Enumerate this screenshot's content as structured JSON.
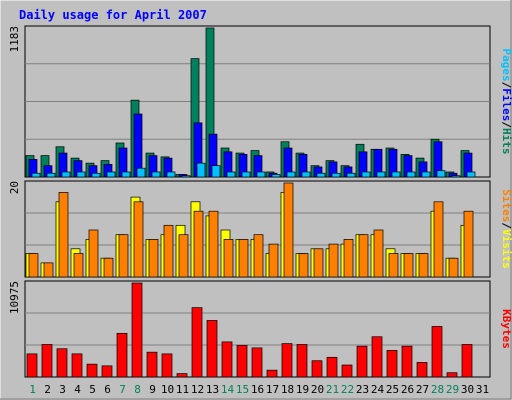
{
  "title": "Daily usage for April 2007",
  "colors": {
    "background": "#c0c0c0",
    "hits": "#00805c",
    "files": "#0000ff",
    "pages": "#00c0ff",
    "visits": "#ffff00",
    "sites": "#ff8000",
    "kbytes": "#ff0000",
    "title": "#0000ff",
    "axis_text": "#000000",
    "weekend_day": "#00805c"
  },
  "chart_data": [
    {
      "type": "bar",
      "panel": "top",
      "max_label": "1183",
      "label_parts": [
        "Pages",
        "/",
        "Files",
        "/",
        "Hits"
      ],
      "categories": [
        "1",
        "2",
        "3",
        "4",
        "5",
        "6",
        "7",
        "8",
        "9",
        "10",
        "11",
        "12",
        "13",
        "14",
        "15",
        "16",
        "17",
        "18",
        "19",
        "20",
        "21",
        "22",
        "23",
        "24",
        "25",
        "26",
        "27",
        "28",
        "29",
        "30",
        "31"
      ],
      "series": [
        {
          "name": "Hits",
          "values": [
            170,
            170,
            240,
            150,
            110,
            130,
            270,
            610,
            190,
            160,
            20,
            940,
            1183,
            230,
            190,
            210,
            40,
            280,
            190,
            90,
            130,
            90,
            260,
            220,
            230,
            180,
            150,
            300,
            40,
            210,
            0
          ]
        },
        {
          "name": "Files",
          "values": [
            140,
            90,
            190,
            130,
            90,
            100,
            230,
            500,
            170,
            150,
            20,
            430,
            340,
            200,
            180,
            170,
            30,
            230,
            180,
            80,
            120,
            80,
            200,
            220,
            220,
            170,
            120,
            280,
            30,
            190,
            0
          ]
        },
        {
          "name": "Pages",
          "values": [
            30,
            30,
            40,
            40,
            30,
            40,
            40,
            70,
            40,
            40,
            10,
            110,
            90,
            40,
            40,
            40,
            20,
            40,
            40,
            30,
            30,
            30,
            40,
            40,
            40,
            40,
            40,
            50,
            10,
            40,
            0
          ]
        }
      ],
      "ylim": [
        0,
        1183
      ]
    },
    {
      "type": "bar",
      "panel": "middle",
      "max_label": "20",
      "label_parts": [
        "Sites",
        "/",
        "Visits"
      ],
      "categories": [
        "1",
        "2",
        "3",
        "4",
        "5",
        "6",
        "7",
        "8",
        "9",
        "10",
        "11",
        "12",
        "13",
        "14",
        "15",
        "16",
        "17",
        "18",
        "19",
        "20",
        "21",
        "22",
        "23",
        "24",
        "25",
        "26",
        "27",
        "28",
        "29",
        "30",
        "31"
      ],
      "series": [
        {
          "name": "Visits",
          "values": [
            5,
            3,
            16,
            6,
            8,
            4,
            9,
            17,
            8,
            9,
            11,
            16,
            13,
            10,
            8,
            8,
            5,
            18,
            5,
            6,
            6,
            7,
            9,
            9,
            6,
            5,
            5,
            14,
            4,
            11,
            0
          ]
        },
        {
          "name": "Sites",
          "values": [
            5,
            3,
            18,
            5,
            10,
            4,
            9,
            16,
            8,
            11,
            9,
            14,
            14,
            8,
            8,
            9,
            7,
            20,
            5,
            6,
            7,
            8,
            9,
            10,
            5,
            5,
            5,
            16,
            4,
            14,
            0
          ]
        }
      ],
      "ylim": [
        0,
        20
      ]
    },
    {
      "type": "bar",
      "panel": "bottom",
      "max_label": "10975",
      "label_parts": [
        "KBytes"
      ],
      "categories": [
        "1",
        "2",
        "3",
        "4",
        "5",
        "6",
        "7",
        "8",
        "9",
        "10",
        "11",
        "12",
        "13",
        "14",
        "15",
        "16",
        "17",
        "18",
        "19",
        "20",
        "21",
        "22",
        "23",
        "24",
        "25",
        "26",
        "27",
        "28",
        "29",
        "30",
        "31"
      ],
      "series": [
        {
          "name": "KBytes",
          "values": [
            2700,
            3800,
            3300,
            2700,
            1500,
            1300,
            5100,
            10975,
            2900,
            2700,
            400,
            8100,
            6600,
            4100,
            3700,
            3400,
            800,
            3900,
            3800,
            1900,
            2300,
            1400,
            3600,
            4700,
            3100,
            3600,
            1700,
            5900,
            500,
            3800,
            0
          ]
        }
      ],
      "ylim": [
        0,
        10975
      ]
    }
  ],
  "x_tick_colors": [
    "#00805c",
    "#000000",
    "#000000",
    "#000000",
    "#000000",
    "#000000",
    "#00805c",
    "#00805c",
    "#000000",
    "#000000",
    "#000000",
    "#000000",
    "#000000",
    "#00805c",
    "#00805c",
    "#000000",
    "#000000",
    "#000000",
    "#000000",
    "#000000",
    "#00805c",
    "#00805c",
    "#000000",
    "#000000",
    "#000000",
    "#000000",
    "#000000",
    "#00805c",
    "#00805c",
    "#000000",
    "#000000"
  ]
}
